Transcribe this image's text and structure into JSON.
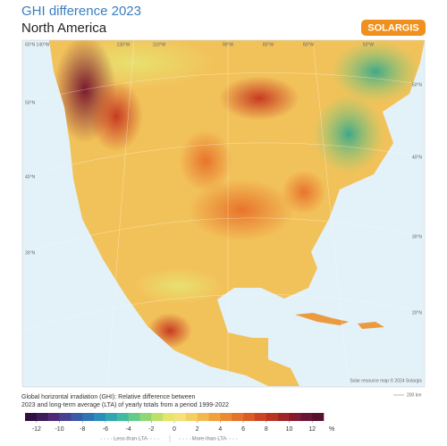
{
  "header": {
    "title": "GHI difference 2023",
    "subtitle": "North America",
    "logo": "SOLARGIS"
  },
  "map": {
    "longitude_labels": [
      "140°W",
      "130°W",
      "110°W",
      "90°W",
      "80°W",
      "60°W",
      "50°W"
    ],
    "latitude_labels_left": [
      "60°N",
      "50°N",
      "40°N",
      "30°N"
    ],
    "latitude_labels_right": [
      "50°N",
      "40°N",
      "30°N",
      "20°N"
    ],
    "credit": "Solar resource map © 2024 Solargis",
    "scale_bar": "200 km"
  },
  "legend": {
    "description": [
      "Global horizontal irradiation (GHI): Relative difference between",
      "2023 and long-term average (LTA) of yearly totals from a period 1999-2022"
    ],
    "range": [
      -13,
      13
    ],
    "ticks": [
      -12,
      -10,
      -8,
      -6,
      -4,
      -2,
      0,
      2,
      4,
      6,
      8,
      10,
      12
    ],
    "unit": "%",
    "colors": [
      "#2d1140",
      "#3e1c5a",
      "#4f2a78",
      "#4a3f93",
      "#3b5aa8",
      "#2f74b5",
      "#2a8fb8",
      "#2fa7b0",
      "#3fbc9f",
      "#62cc88",
      "#8fd774",
      "#bde068",
      "#e4e66a",
      "#f6e07a",
      "#f5cf62",
      "#f3b94c",
      "#f0a13c",
      "#ec8a31",
      "#e5712a",
      "#dc5a25",
      "#cd4422",
      "#b93322",
      "#a02526",
      "#861b2e",
      "#6a1535",
      "#561030"
    ],
    "less_label": "Less than LTA",
    "more_label": "More than LTA"
  }
}
